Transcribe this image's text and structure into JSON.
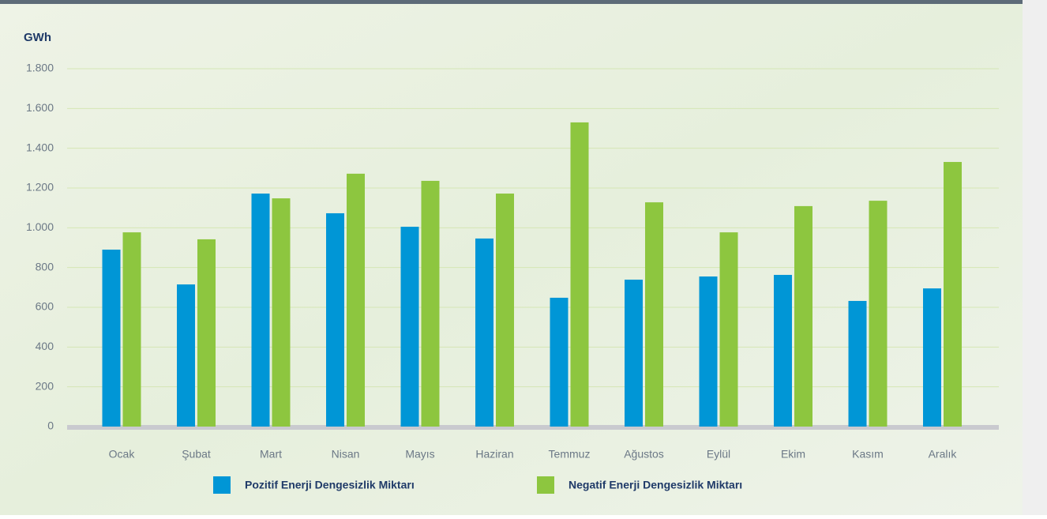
{
  "chart_data": {
    "type": "bar",
    "y_label": "GWh",
    "categories": [
      "Ocak",
      "Şubat",
      "Mart",
      "Nisan",
      "Mayıs",
      "Haziran",
      "Temmuz",
      "Ağustos",
      "Eylül",
      "Ekim",
      "Kasım",
      "Aralık"
    ],
    "series": [
      {
        "name": "Pozitif Enerji Dengesizlik Miktarı",
        "color": "#0096d6",
        "values": [
          890,
          715,
          1172,
          1073,
          1005,
          946,
          648,
          739,
          755,
          763,
          632,
          695
        ]
      },
      {
        "name": "Negatif Enerji Dengesizlik Miktarı",
        "color": "#8dc63f",
        "values": [
          977,
          942,
          1148,
          1272,
          1236,
          1172,
          1530,
          1128,
          977,
          1109,
          1136,
          1331
        ]
      }
    ],
    "ylim": [
      0,
      1800
    ],
    "yticks": [
      0,
      200,
      400,
      600,
      800,
      {
        "value": 1000,
        "label": "1.000"
      },
      {
        "value": 1200,
        "label": "1.200"
      },
      {
        "value": 1400,
        "label": "1.400"
      },
      {
        "value": 1600,
        "label": "1.600"
      },
      {
        "value": 1800,
        "label": "1.800"
      }
    ],
    "grid": true
  }
}
